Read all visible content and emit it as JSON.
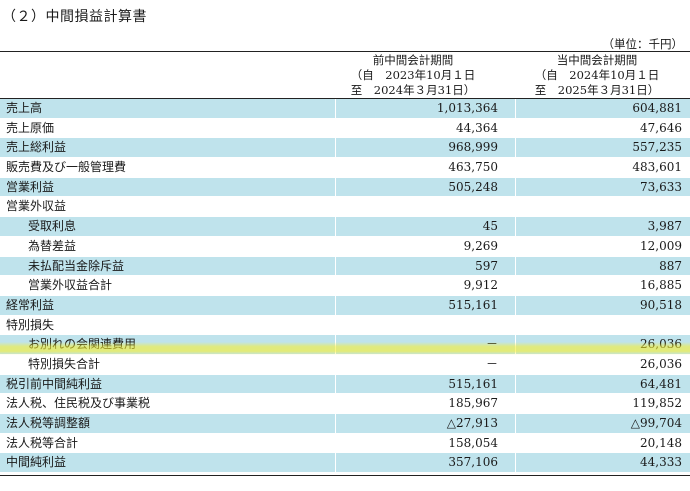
{
  "title": "（２）中間損益計算書",
  "unit": "（単位：千円）",
  "columns": {
    "prev": {
      "line1": "前中間会計期間",
      "line2": "（自　2023年10月１日",
      "line3": "至　2024年３月31日）"
    },
    "curr": {
      "line1": "当中間会計期間",
      "line2": "（自　2024年10月１日",
      "line3": "至　2025年３月31日）"
    }
  },
  "rows": [
    {
      "label": "売上高",
      "prev": "1,013,364",
      "curr": "604,881"
    },
    {
      "label": "売上原価",
      "prev": "44,364",
      "curr": "47,646"
    },
    {
      "label": "売上総利益",
      "prev": "968,999",
      "curr": "557,235"
    },
    {
      "label": "販売費及び一般管理費",
      "prev": "463,750",
      "curr": "483,601"
    },
    {
      "label": "営業利益",
      "prev": "505,248",
      "curr": "73,633"
    },
    {
      "label": "営業外収益",
      "prev": "",
      "curr": ""
    },
    {
      "label": "受取利息",
      "prev": "45",
      "curr": "3,987"
    },
    {
      "label": "為替差益",
      "prev": "9,269",
      "curr": "12,009"
    },
    {
      "label": "未払配当金除斥益",
      "prev": "597",
      "curr": "887"
    },
    {
      "label": "営業外収益合計",
      "prev": "9,912",
      "curr": "16,885"
    },
    {
      "label": "経常利益",
      "prev": "515,161",
      "curr": "90,518"
    },
    {
      "label": "特別損失",
      "prev": "",
      "curr": ""
    },
    {
      "label": "お別れの会関連費用",
      "prev": "－",
      "curr": "26,036"
    },
    {
      "label": "特別損失合計",
      "prev": "－",
      "curr": "26,036"
    },
    {
      "label": "税引前中間純利益",
      "prev": "515,161",
      "curr": "64,481"
    },
    {
      "label": "法人税、住民税及び事業税",
      "prev": "185,967",
      "curr": "119,852"
    },
    {
      "label": "法人税等調整額",
      "prev": "△27,913",
      "curr": "△99,704"
    },
    {
      "label": "法人税等合計",
      "prev": "158,054",
      "curr": "20,148"
    },
    {
      "label": "中間純利益",
      "prev": "357,106",
      "curr": "44,333"
    }
  ],
  "colors": {
    "row_shade": "#bfe3ec",
    "highlighter": "#faf028"
  }
}
